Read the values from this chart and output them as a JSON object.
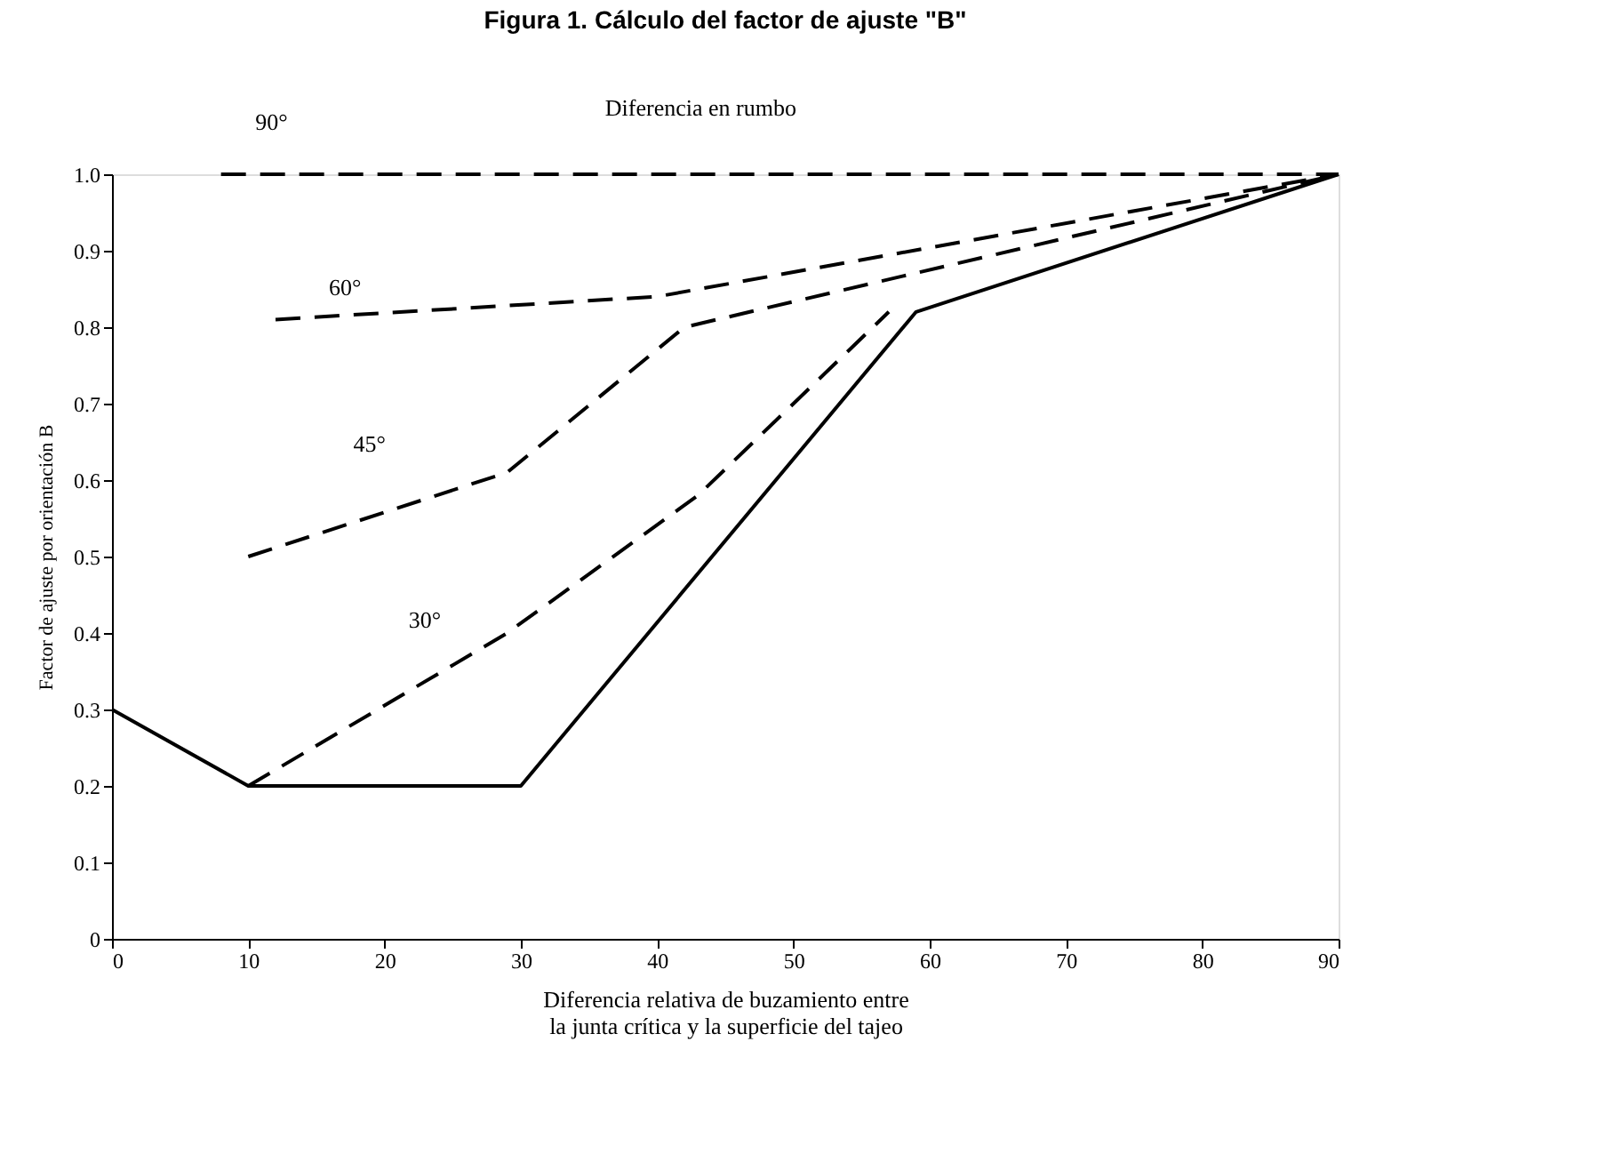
{
  "chart_data": {
    "type": "line",
    "title": "Figura 1. Cálculo del factor de ajuste \"B\"",
    "xlabel": [
      "Diferencia relativa de buzamiento entre",
      "la junta crítica y la superficie del tajeo"
    ],
    "ylabel": "Factor de ajuste por orientación B",
    "xlim": [
      0,
      90
    ],
    "xticks": [
      0,
      10,
      20,
      30,
      40,
      50,
      60,
      70,
      80,
      90
    ],
    "ylim": [
      0,
      1.0
    ],
    "yticks": [
      {
        "value": 0,
        "label": "0"
      },
      0.1,
      0.2,
      0.3,
      0.4,
      0.5,
      0.6,
      0.7,
      0.8,
      0.9,
      {
        "value": 1,
        "label": "1.0"
      }
    ],
    "grid": false,
    "marker": "none",
    "series": [
      {
        "color": "#000000",
        "line_style": "solid",
        "x": [
          0,
          10,
          30,
          59,
          90
        ],
        "values": [
          0.3,
          0.2,
          0.2,
          0.82,
          1.0
        ]
      },
      {
        "color": "#000000",
        "line_style": "dashed",
        "x": [
          10,
          29,
          43,
          57
        ],
        "values": [
          0.2,
          0.4,
          0.58,
          0.82
        ]
      },
      {
        "color": "#000000",
        "line_style": "dashed",
        "x": [
          10,
          29,
          42,
          90
        ],
        "values": [
          0.5,
          0.61,
          0.8,
          1.0
        ]
      },
      {
        "color": "#000000",
        "line_style": "dashed",
        "x": [
          12,
          40,
          90
        ],
        "values": [
          0.81,
          0.84,
          1.0
        ]
      },
      {
        "color": "#000000",
        "line_style": "dashed",
        "x": [
          8,
          90
        ],
        "values": [
          1.0,
          1.0
        ]
      }
    ],
    "annotations": [
      "90°",
      "Diferencia en rumbo",
      "60°",
      "45°",
      "30°"
    ]
  }
}
